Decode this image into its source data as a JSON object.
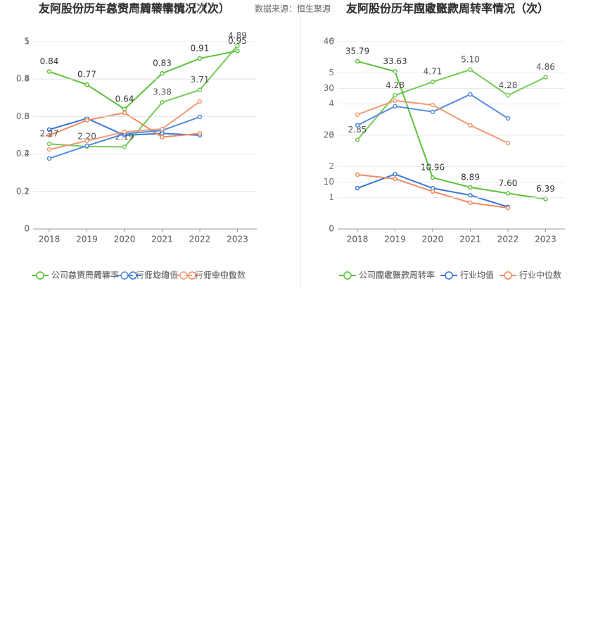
{
  "source": "数据来源：恒生聚源",
  "chart_data": [
    {
      "type": "line",
      "title": "友阿股份历年总资产周转率情况（次）",
      "categories": [
        "2018",
        "2019",
        "2020",
        "2021",
        "2022",
        "2023"
      ],
      "ylim": [
        0,
        1
      ],
      "yticks": [
        0,
        0.2,
        0.4,
        0.6,
        0.8,
        1
      ],
      "series": [
        {
          "name": "公司总资产周转率",
          "color": "#5cc23a",
          "values": [
            0.84,
            0.77,
            0.64,
            0.83,
            0.91,
            0.95
          ],
          "value_labels": [
            "0.84",
            "0.77",
            "0.64",
            "0.83",
            "0.91",
            "0.95"
          ]
        },
        {
          "name": "行业均值",
          "color": "#3a78d8",
          "values": [
            0.53,
            0.59,
            0.5,
            0.51,
            0.5,
            null
          ]
        },
        {
          "name": "行业中位数",
          "color": "#f08a5d",
          "values": [
            0.5,
            0.58,
            0.62,
            0.49,
            0.51,
            null
          ]
        }
      ]
    },
    {
      "type": "line",
      "title": "友阿股份历年存货周转率情况（次）",
      "categories": [
        "2018",
        "2019",
        "2020",
        "2021",
        "2022",
        "2023"
      ],
      "ylim": [
        0,
        5
      ],
      "yticks": [
        0,
        1,
        2,
        3,
        4,
        5
      ],
      "series": [
        {
          "name": "公司存货周转率",
          "color": "#5cc23a",
          "values": [
            2.27,
            2.2,
            2.19,
            3.38,
            3.71,
            4.89
          ],
          "value_labels": [
            "2.27",
            "2.20",
            "2.19",
            "3.38",
            "3.71",
            "4.89"
          ]
        },
        {
          "name": "行业均值",
          "color": "#3a78d8",
          "values": [
            1.88,
            2.22,
            2.54,
            2.63,
            2.99,
            null
          ]
        },
        {
          "name": "行业中位数",
          "color": "#f08a5d",
          "values": [
            2.12,
            2.35,
            2.59,
            2.67,
            3.4,
            null
          ]
        }
      ]
    },
    {
      "type": "line",
      "title": "友阿股份历年应收账款周转率情况（次）",
      "categories": [
        "2018",
        "2019",
        "2020",
        "2021",
        "2022",
        "2023"
      ],
      "ylim": [
        0,
        40
      ],
      "yticks": [
        0,
        10,
        20,
        30,
        40
      ],
      "series": [
        {
          "name": "公司应收账款周转率",
          "color": "#5cc23a",
          "values": [
            35.79,
            33.63,
            10.96,
            8.89,
            7.6,
            6.39
          ],
          "value_labels": [
            "35.79",
            "33.63",
            "10.96",
            "8.89",
            "7.60",
            "6.39"
          ]
        },
        {
          "name": "行业均值",
          "color": "#3a78d8",
          "values": [
            8.7,
            11.7,
            8.7,
            7.2,
            4.7,
            null
          ]
        },
        {
          "name": "行业中位数",
          "color": "#f08a5d",
          "values": [
            11.6,
            10.7,
            8.0,
            5.6,
            4.5,
            null
          ]
        }
      ]
    },
    {
      "type": "line",
      "title": "友阿股份历年固定资产周转率情况（次）",
      "categories": [
        "2018",
        "2019",
        "2020",
        "2021",
        "2022",
        "2023"
      ],
      "ylim": [
        0,
        6
      ],
      "yticks": [
        0,
        1,
        2,
        3,
        4,
        5,
        6
      ],
      "series": [
        {
          "name": "公司固定资产周转率",
          "color": "#5cc23a",
          "values": [
            2.85,
            4.28,
            4.71,
            5.1,
            4.28,
            4.86
          ],
          "value_labels": [
            "2.85",
            "4.28",
            "4.71",
            "5.10",
            "4.28",
            "4.86"
          ]
        },
        {
          "name": "行业均值",
          "color": "#3a78d8",
          "values": [
            3.32,
            3.93,
            3.75,
            4.31,
            3.54,
            null
          ]
        },
        {
          "name": "行业中位数",
          "color": "#f08a5d",
          "values": [
            3.66,
            4.11,
            3.97,
            3.32,
            2.75,
            null
          ]
        }
      ]
    }
  ]
}
